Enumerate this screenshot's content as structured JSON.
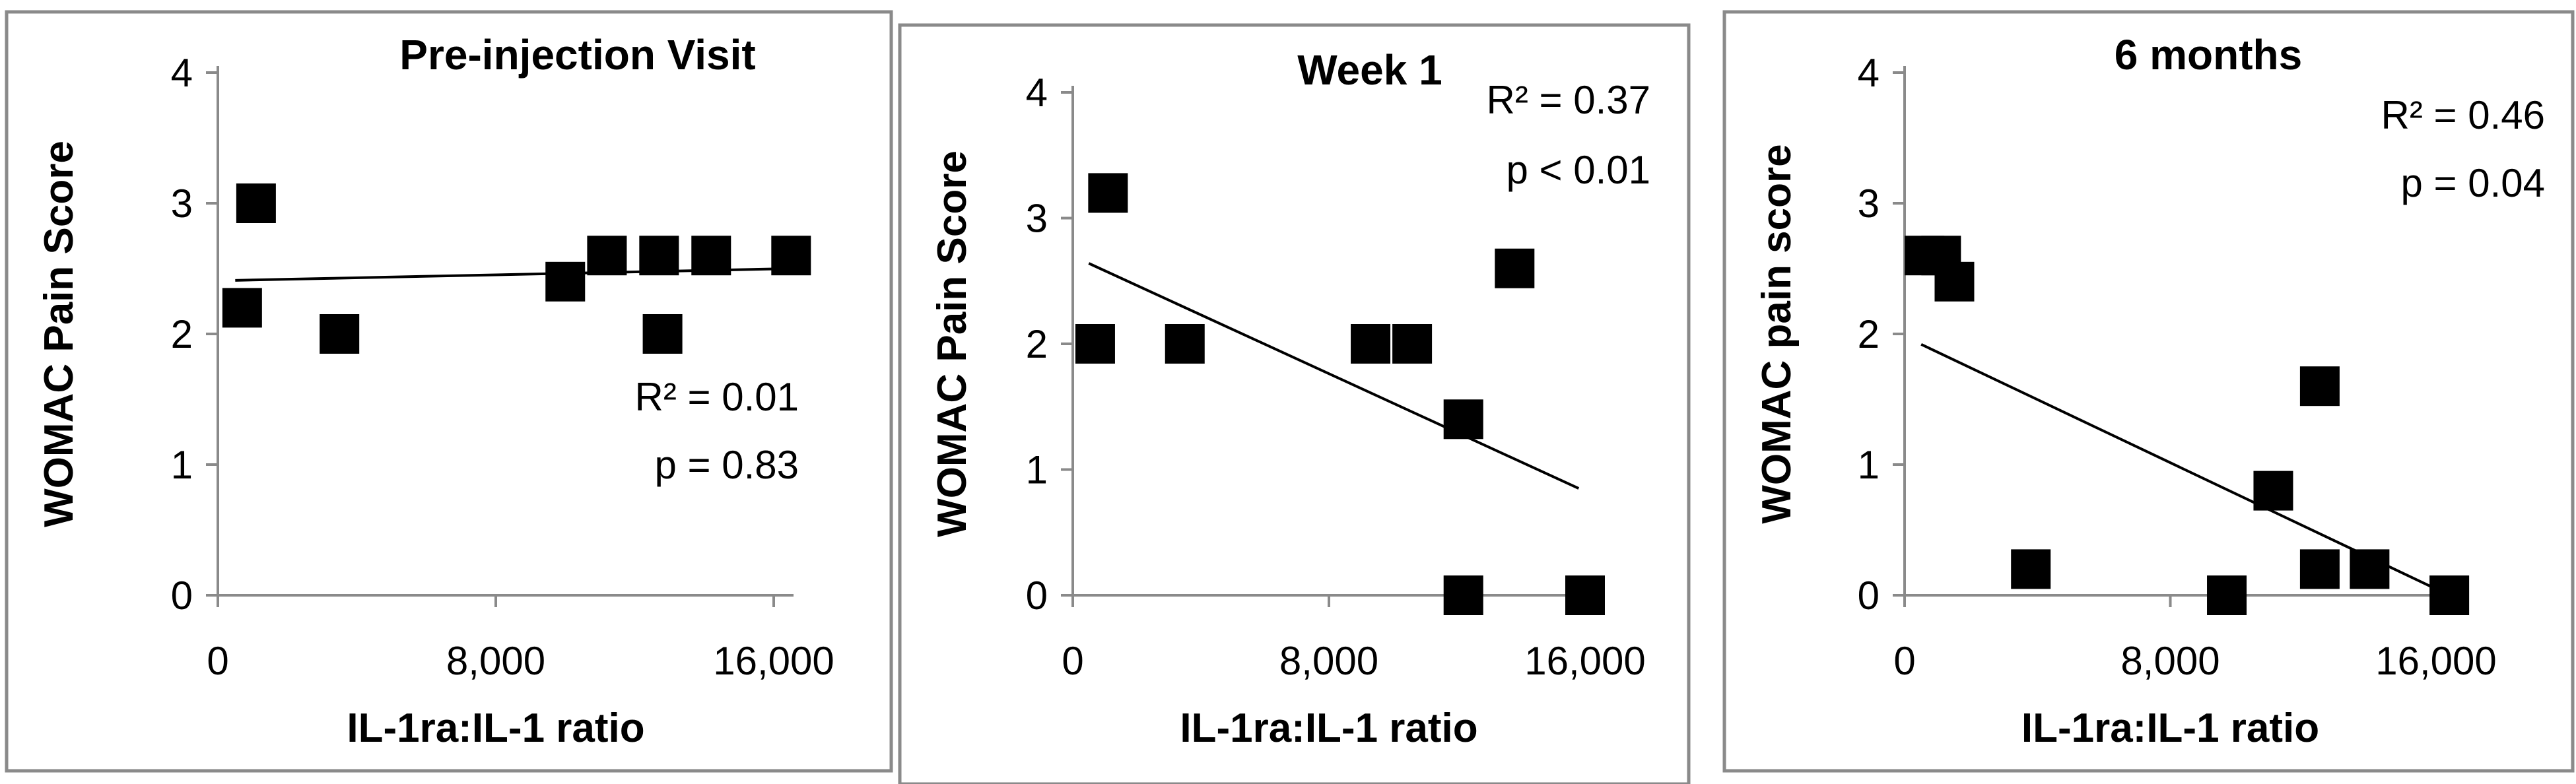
{
  "chart_data": [
    {
      "type": "scatter",
      "title": "Pre-injection Visit",
      "xlabel": "IL-1ra:IL-1 ratio",
      "ylabel": "WOMAC Pain Score",
      "xlim": [
        0,
        16000
      ],
      "ylim": [
        0,
        4
      ],
      "xticks": [
        0,
        8000,
        16000
      ],
      "xtick_labels": [
        "0",
        "8,000",
        "16,000"
      ],
      "yticks": [
        0,
        1,
        2,
        3,
        4
      ],
      "ytick_labels": [
        "0",
        "1",
        "2",
        "3",
        "4"
      ],
      "annotation": [
        "R² = 0.01",
        "p = 0.83"
      ],
      "annotation_position": "lower-right",
      "points": [
        {
          "x": 700,
          "y": 2.2
        },
        {
          "x": 1100,
          "y": 3.0
        },
        {
          "x": 3500,
          "y": 2.0
        },
        {
          "x": 10000,
          "y": 2.4
        },
        {
          "x": 11200,
          "y": 2.6
        },
        {
          "x": 12700,
          "y": 2.6
        },
        {
          "x": 12800,
          "y": 2.0
        },
        {
          "x": 14200,
          "y": 2.6
        },
        {
          "x": 16500,
          "y": 2.6
        }
      ],
      "trendline": {
        "x": [
          500,
          16500
        ],
        "y": [
          2.41,
          2.5
        ]
      }
    },
    {
      "type": "scatter",
      "title": "Week 1",
      "xlabel": "IL-1ra:IL-1 ratio",
      "ylabel": "WOMAC Pain Score",
      "xlim": [
        0,
        16000
      ],
      "ylim": [
        0,
        4
      ],
      "xticks": [
        0,
        8000,
        16000
      ],
      "xtick_labels": [
        "0",
        "8,000",
        "16,000"
      ],
      "yticks": [
        0,
        1,
        2,
        3,
        4
      ],
      "ytick_labels": [
        "0",
        "1",
        "2",
        "3",
        "4"
      ],
      "annotation": [
        "R² = 0.37",
        "p < 0.01"
      ],
      "annotation_position": "top-right",
      "points": [
        {
          "x": 700,
          "y": 2.0
        },
        {
          "x": 1100,
          "y": 3.2
        },
        {
          "x": 3500,
          "y": 2.0
        },
        {
          "x": 9300,
          "y": 2.0
        },
        {
          "x": 10600,
          "y": 2.0
        },
        {
          "x": 12200,
          "y": 1.4
        },
        {
          "x": 12200,
          "y": 0.0
        },
        {
          "x": 13800,
          "y": 2.6
        },
        {
          "x": 16000,
          "y": 0.0
        }
      ],
      "trendline": {
        "x": [
          500,
          15800
        ],
        "y": [
          2.64,
          0.85
        ]
      }
    },
    {
      "type": "scatter",
      "title": "6 months",
      "xlabel": "IL-1ra:IL-1 ratio",
      "ylabel": "WOMAC pain score",
      "xlim": [
        0,
        16000
      ],
      "ylim": [
        0,
        4
      ],
      "xticks": [
        0,
        8000,
        16000
      ],
      "xtick_labels": [
        "0",
        "8,000",
        "16,000"
      ],
      "yticks": [
        0,
        1,
        2,
        3,
        4
      ],
      "ytick_labels": [
        "0",
        "1",
        "2",
        "3",
        "4"
      ],
      "annotation": [
        "R² = 0.46",
        "p = 0.04"
      ],
      "annotation_position": "top-right",
      "points": [
        {
          "x": 600,
          "y": 2.6
        },
        {
          "x": 1100,
          "y": 2.6
        },
        {
          "x": 1500,
          "y": 2.4
        },
        {
          "x": 3800,
          "y": 0.2
        },
        {
          "x": 9700,
          "y": 0.0
        },
        {
          "x": 11100,
          "y": 0.8
        },
        {
          "x": 12500,
          "y": 1.6
        },
        {
          "x": 12500,
          "y": 0.2
        },
        {
          "x": 14000,
          "y": 0.2
        },
        {
          "x": 16400,
          "y": 0.0
        }
      ],
      "trendline": {
        "x": [
          500,
          16400
        ],
        "y": [
          1.92,
          0.0
        ]
      }
    }
  ]
}
